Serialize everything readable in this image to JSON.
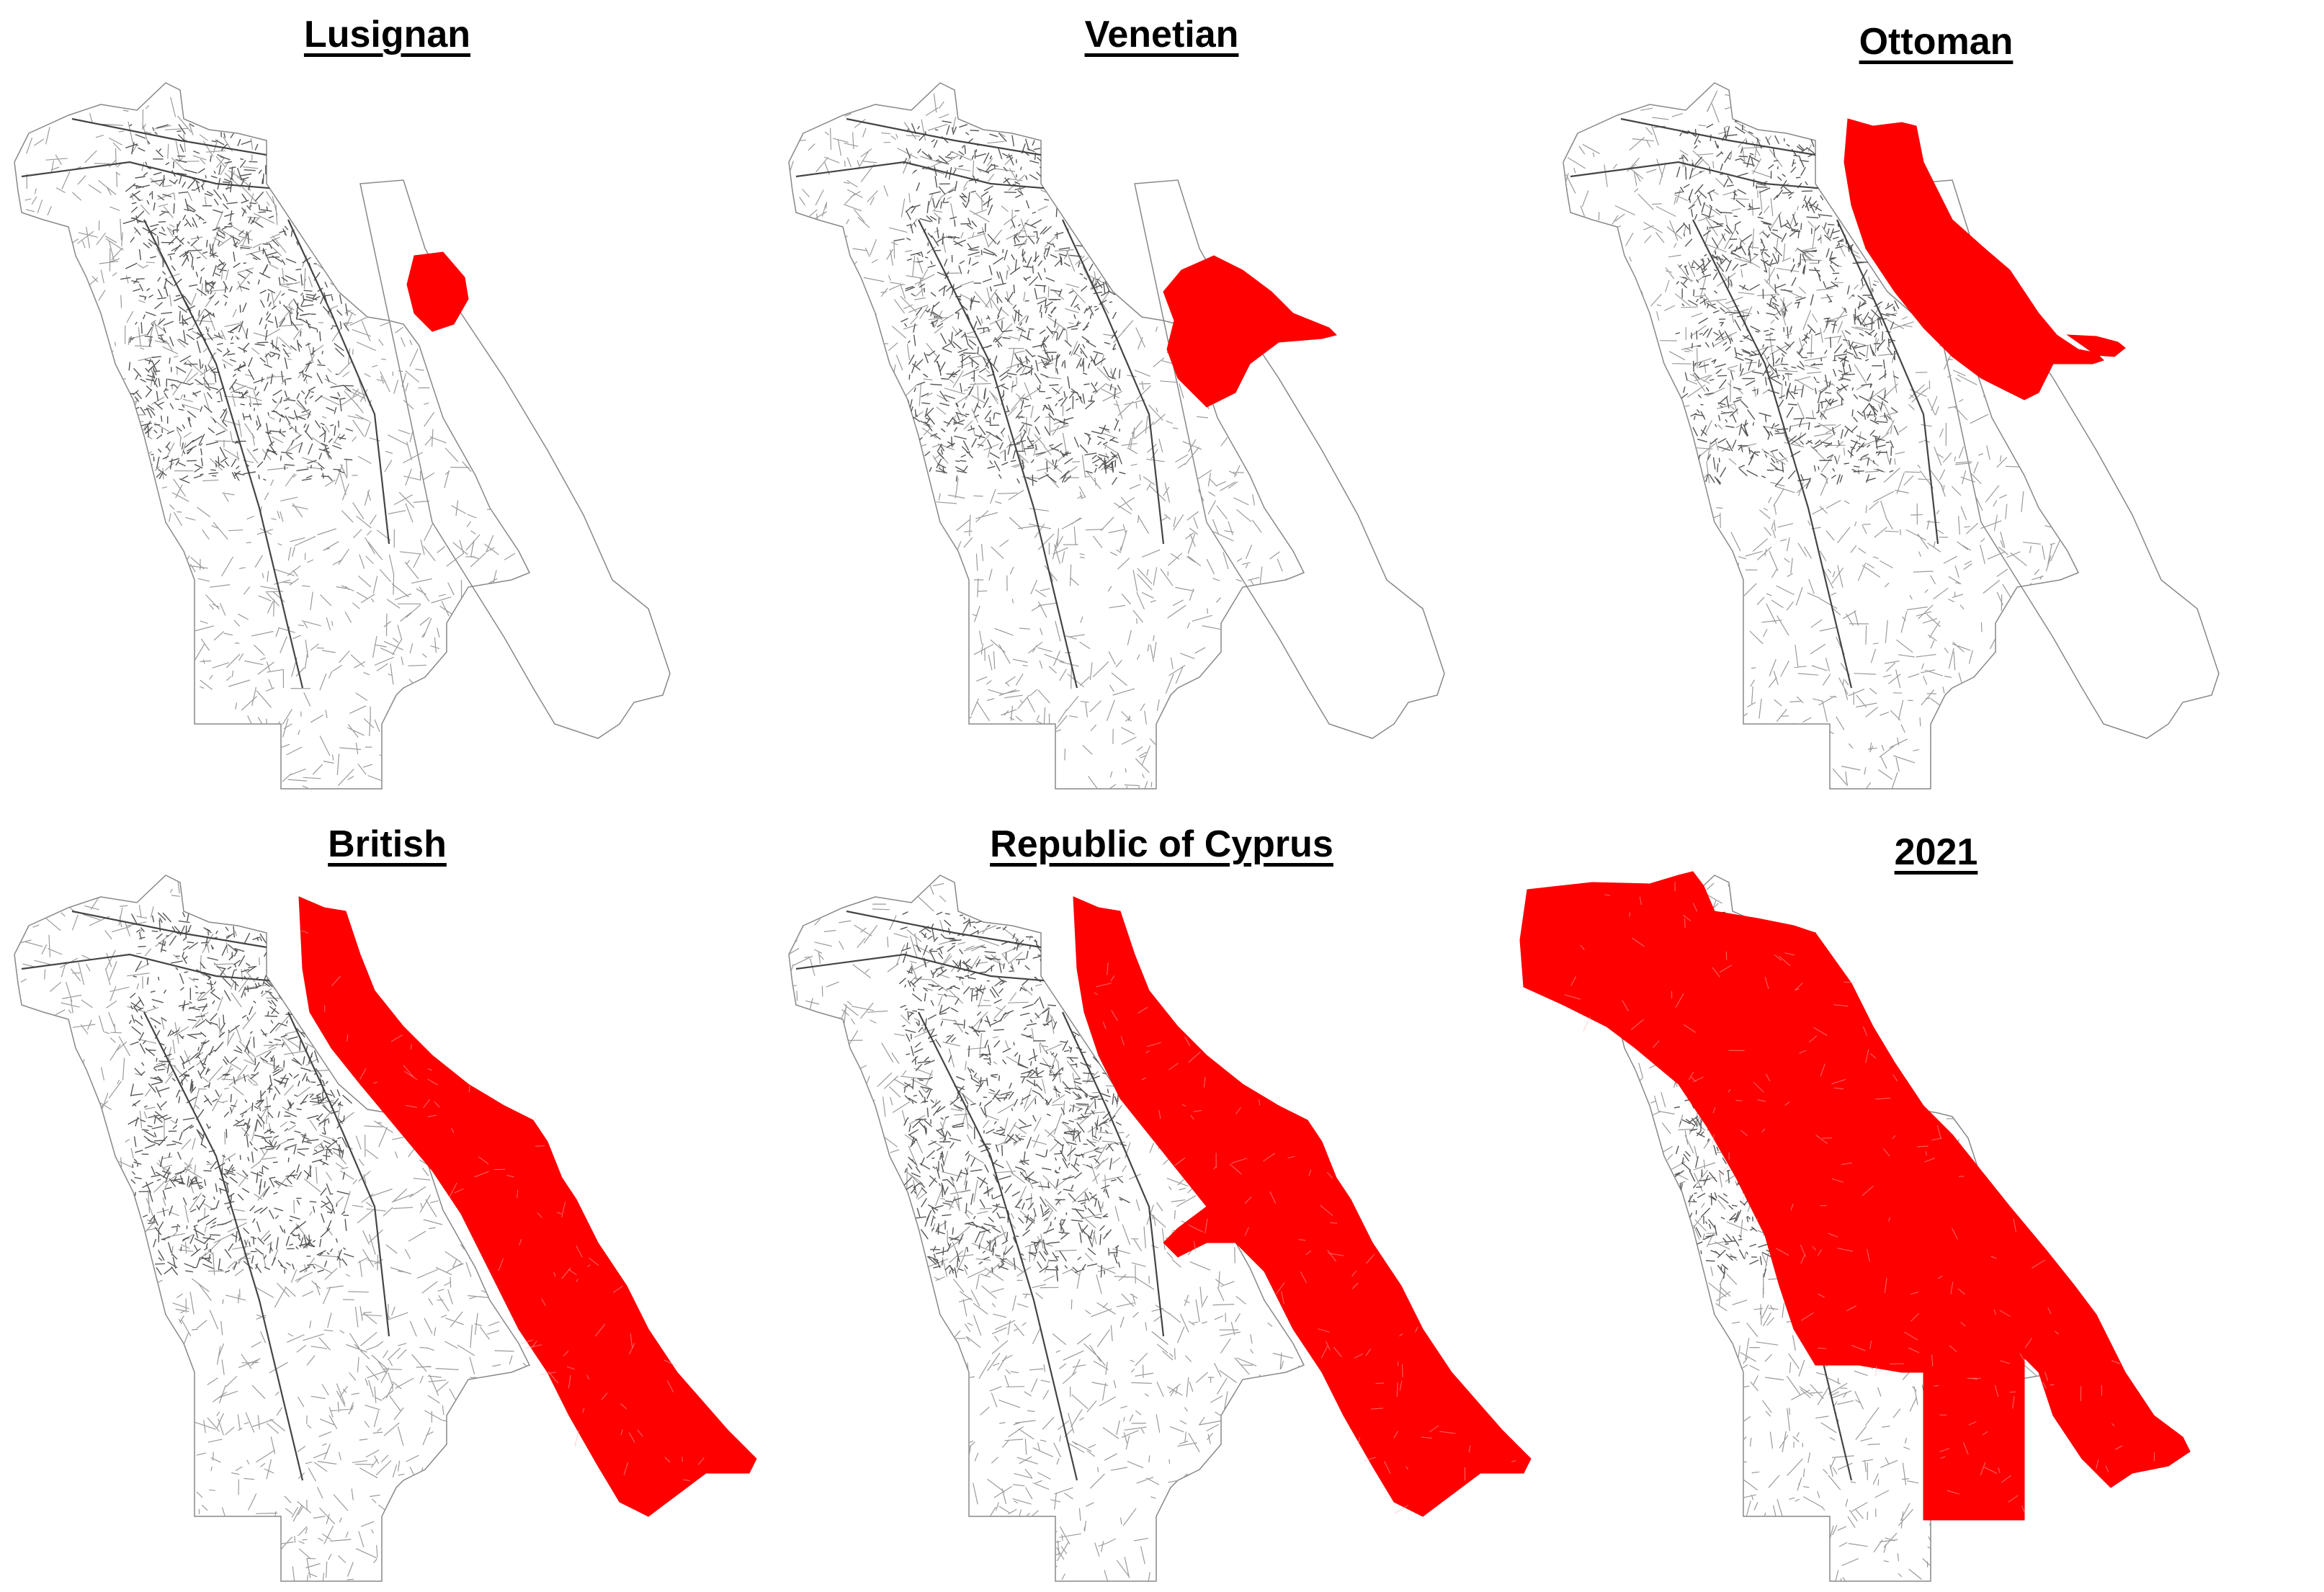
{
  "figure": {
    "panels": [
      {
        "title": "Lusignan",
        "key": "lusignan"
      },
      {
        "title": "Venetian",
        "key": "venetian"
      },
      {
        "title": "Ottoman",
        "key": "ottoman"
      },
      {
        "title": "British",
        "key": "british"
      },
      {
        "title": "Republic of Cyprus",
        "key": "republic"
      },
      {
        "title": "2021",
        "key": "y2021"
      }
    ],
    "colors": {
      "highlight": "#ff0000",
      "street_light": "#9a9a9a",
      "street_dense": "#555555",
      "outline": "#888888",
      "background": "#ffffff"
    }
  }
}
